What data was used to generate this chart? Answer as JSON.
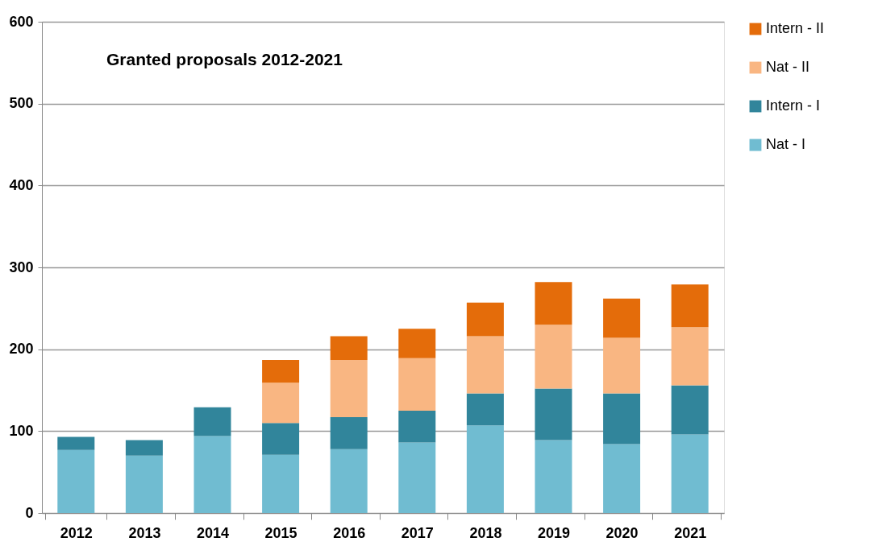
{
  "chart_data": {
    "type": "bar",
    "title": "Granted proposals 2012-2021",
    "stacked": true,
    "categories": [
      "2012",
      "2013",
      "2014",
      "2015",
      "2016",
      "2017",
      "2018",
      "2019",
      "2020",
      "2021"
    ],
    "series": [
      {
        "name": "Nat - I",
        "color": "#70bcd1",
        "values": [
          77,
          70,
          94,
          71,
          78,
          86,
          107,
          89,
          84,
          96
        ]
      },
      {
        "name": "Intern - I",
        "color": "#31859b",
        "values": [
          16,
          19,
          35,
          39,
          39,
          39,
          39,
          63,
          62,
          60
        ]
      },
      {
        "name": "Nat - II",
        "color": "#f9b682",
        "values": [
          null,
          null,
          null,
          49,
          70,
          64,
          70,
          78,
          68,
          71
        ]
      },
      {
        "name": "Intern - II",
        "color": "#e46c0a",
        "values": [
          null,
          null,
          null,
          28,
          29,
          36,
          41,
          52,
          48,
          52
        ]
      }
    ],
    "ylim": [
      0,
      600
    ],
    "yticks": [
      0,
      100,
      200,
      300,
      400,
      500,
      600
    ],
    "grid": "y",
    "legend": "right"
  }
}
